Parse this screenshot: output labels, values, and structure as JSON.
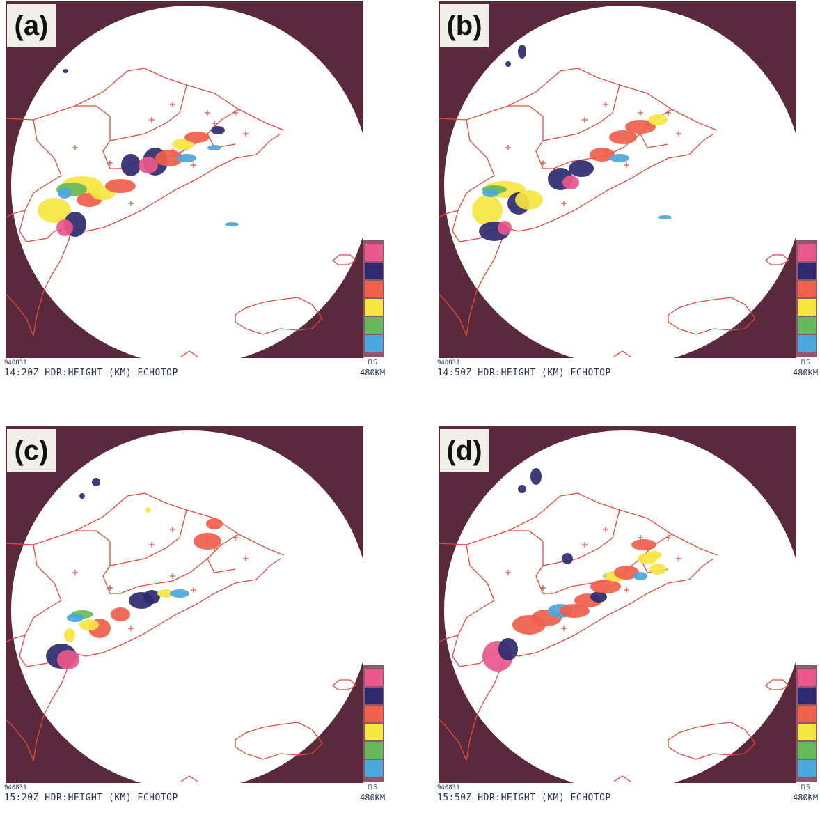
{
  "colors": {
    "background_outside": "#5a2a3c",
    "radar_circle": "#ffffff",
    "borders": "#e24a3a",
    "echo_scale": [
      "#e8588a",
      "#2e2a70",
      "#f0604a",
      "#f6e642",
      "#67b85a",
      "#4aa8dc"
    ]
  },
  "panels": [
    {
      "id": "a",
      "letter": "(a)",
      "date": "940831",
      "time": "14:20Z",
      "product": "HDR:HEIGHT (KM) ECHOTOP",
      "range": "480KM",
      "legend_label": "ns"
    },
    {
      "id": "b",
      "letter": "(b)",
      "date": "940831",
      "time": "14:50Z",
      "product": "HDR:HEIGHT (KM) ECHOTOP",
      "range": "480KM",
      "legend_label": "ns"
    },
    {
      "id": "c",
      "letter": "(c)",
      "date": "940831",
      "time": "15:20Z",
      "product": "HDR:HEIGHT (KM) ECHOTOP",
      "range": "480KM",
      "legend_label": "ns"
    },
    {
      "id": "d",
      "letter": "(d)",
      "date": "940831",
      "time": "15:50Z",
      "product": "HDR:HEIGHT (KM) ECHOTOP",
      "range": "480KM",
      "legend_label": "ns"
    }
  ]
}
